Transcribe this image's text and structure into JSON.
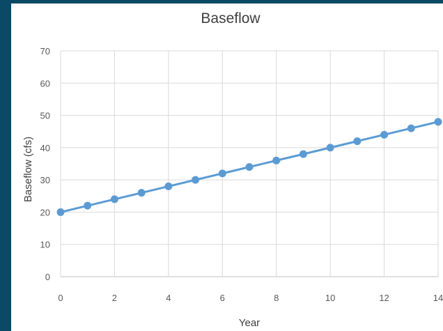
{
  "chart_data": {
    "type": "line",
    "title": "Baseflow",
    "xlabel": "Year",
    "ylabel": "Baseflow (cfs)",
    "xlim": [
      0,
      14
    ],
    "ylim": [
      0,
      70
    ],
    "xticks": [
      0,
      2,
      4,
      6,
      8,
      10,
      12,
      14
    ],
    "yticks": [
      0,
      10,
      20,
      30,
      40,
      50,
      60,
      70
    ],
    "grid": true,
    "legend": "none",
    "line_color": "#5b9bd5",
    "series": [
      {
        "x": [
          0,
          1,
          2,
          3,
          4,
          5,
          6,
          7,
          8,
          9,
          10,
          11,
          12,
          13,
          14
        ],
        "y": [
          20,
          22,
          24,
          26,
          28,
          30,
          32,
          34,
          36,
          38,
          40,
          42,
          44,
          46,
          48
        ]
      }
    ]
  }
}
